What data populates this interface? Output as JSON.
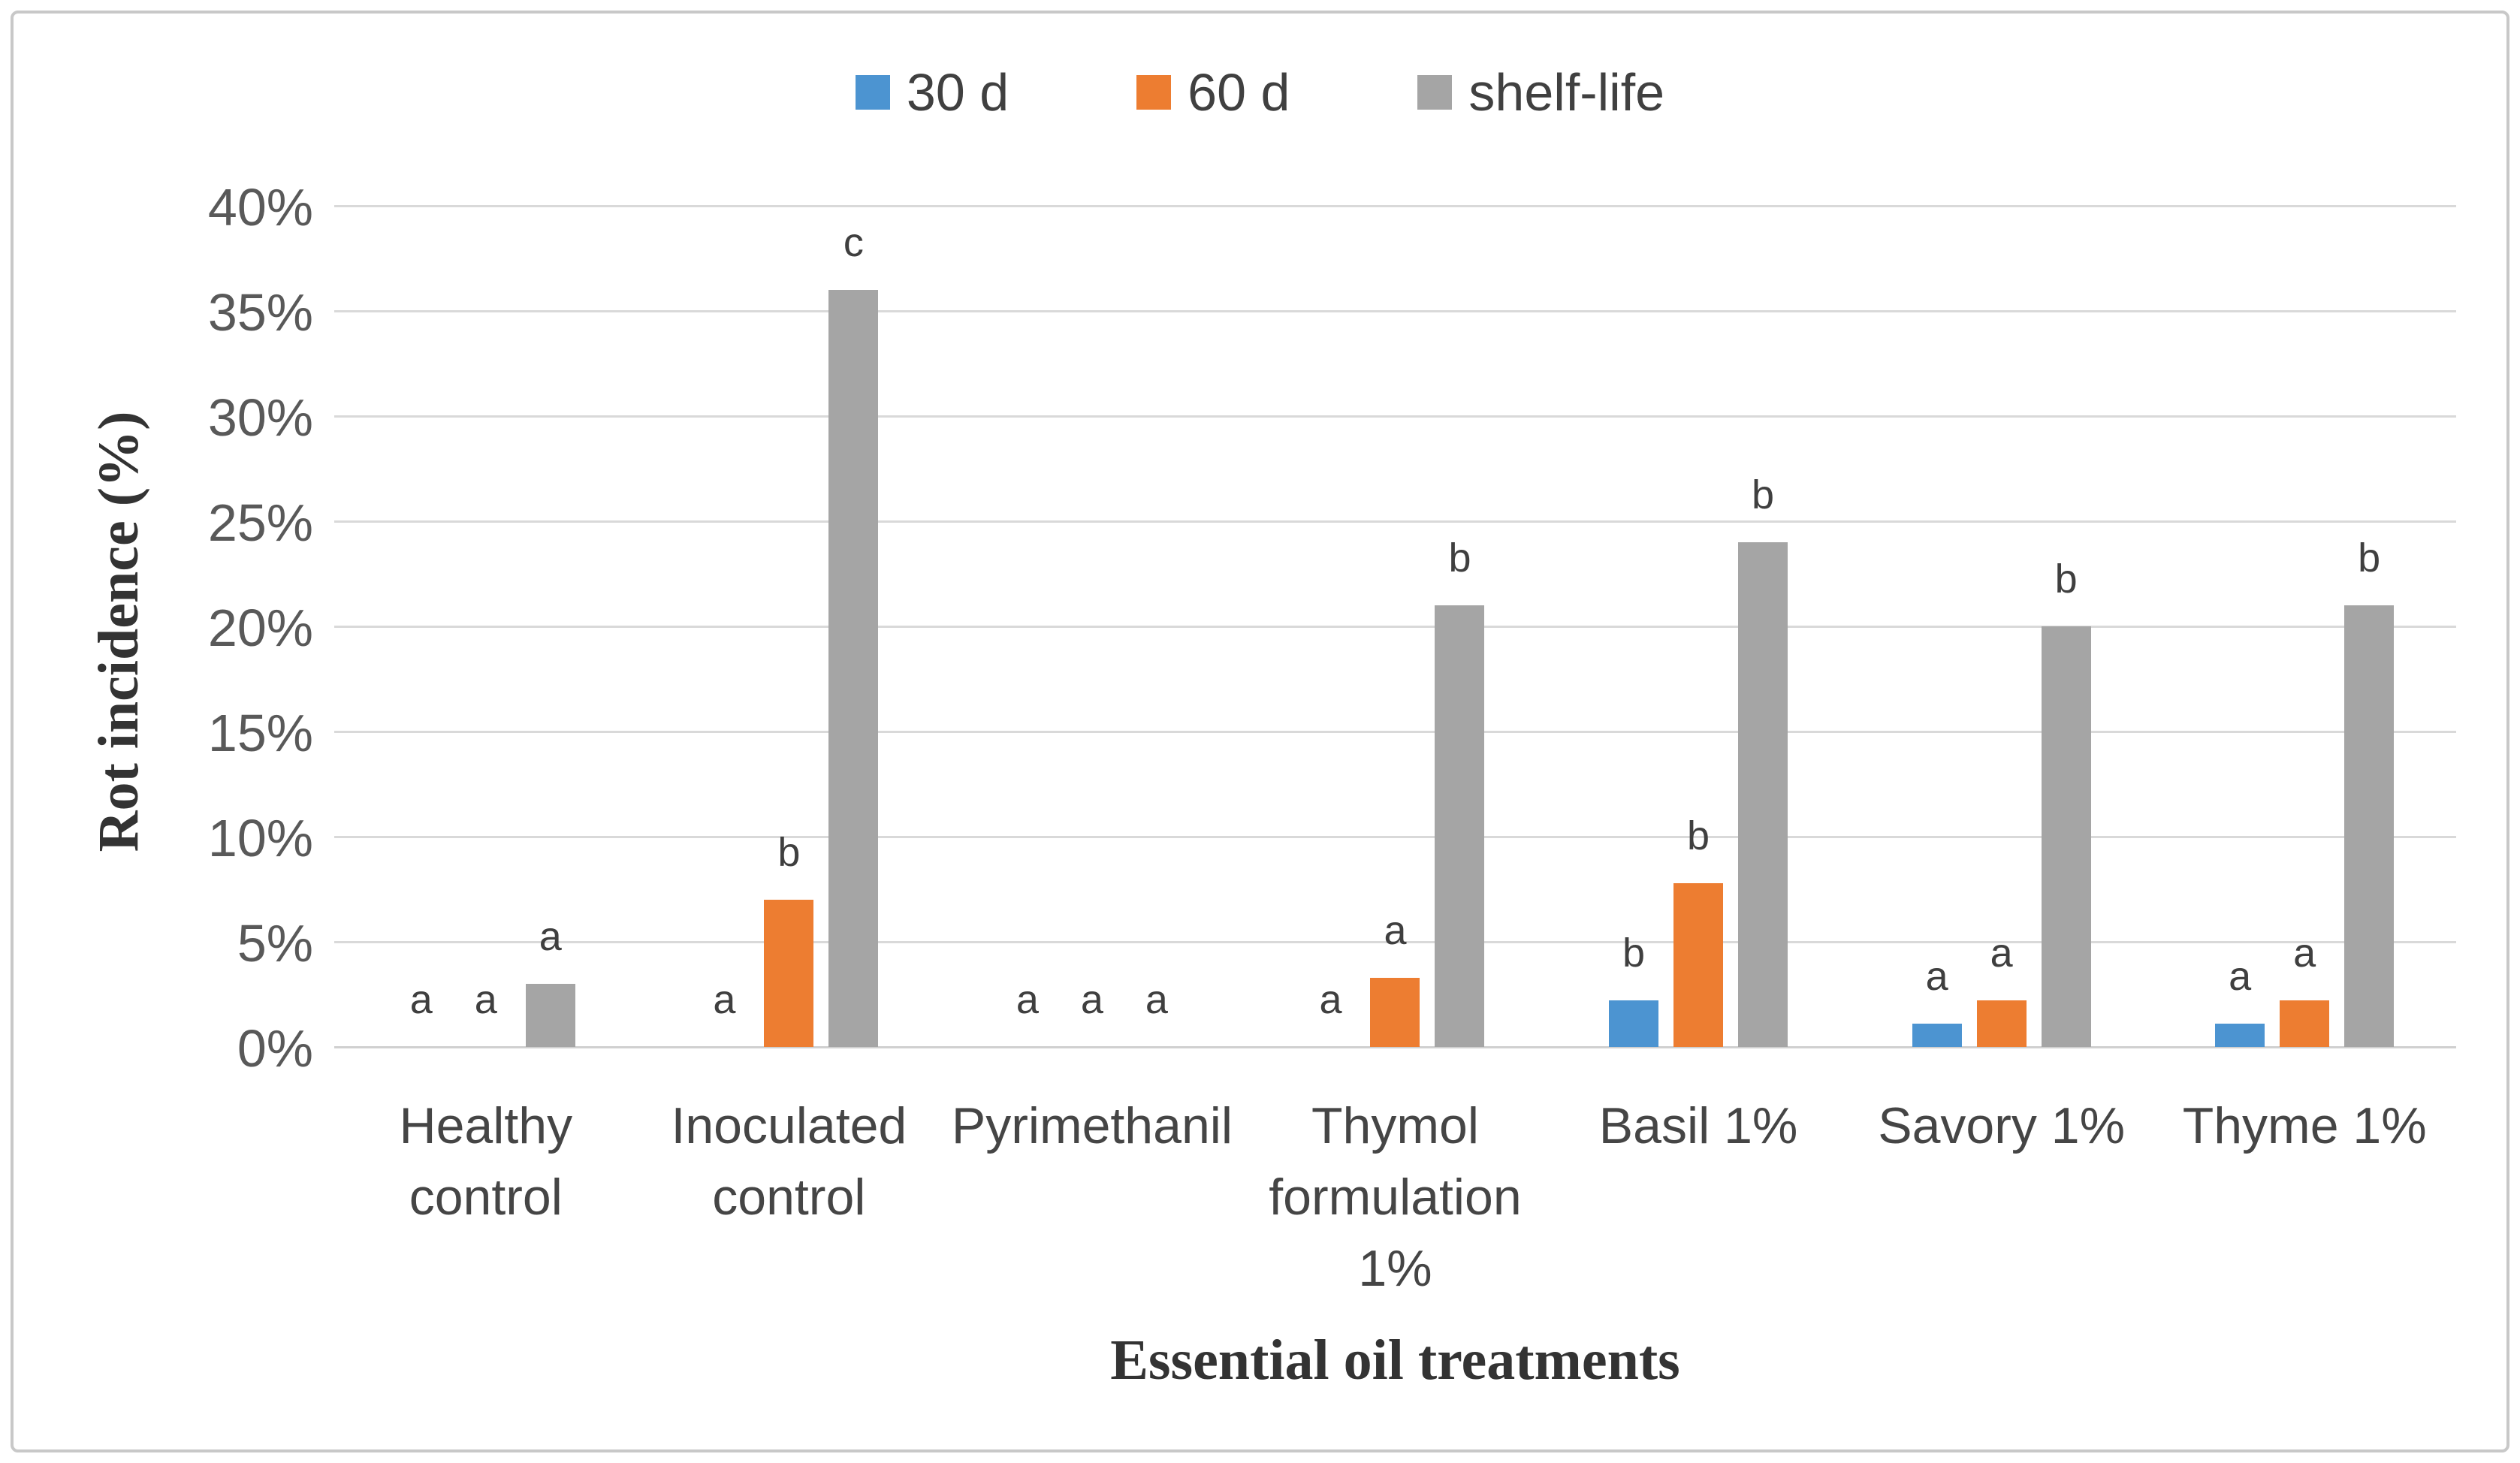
{
  "chart_data": {
    "type": "bar",
    "title": "",
    "xlabel": "Essential oil treatments",
    "ylabel": "Rot incidence (%)",
    "ylim": [
      0,
      40
    ],
    "ytick_step": 5,
    "ytick_labels": [
      "0%",
      "5%",
      "10%",
      "15%",
      "20%",
      "25%",
      "30%",
      "35%",
      "40%"
    ],
    "grid": true,
    "legend_position": "top-center",
    "categories": [
      "Healthy control",
      "Inoculated control",
      "Pyrimethanil",
      "Thymol formulation 1%",
      "Basil 1%",
      "Savory 1%",
      "Thyme 1%"
    ],
    "category_display_lines": [
      [
        "Healthy",
        "control"
      ],
      [
        "Inoculated",
        "control"
      ],
      [
        "Pyrimethanil"
      ],
      [
        "Thymol",
        "formulation",
        "1%"
      ],
      [
        "Basil 1%"
      ],
      [
        "Savory 1%"
      ],
      [
        "Thyme 1%"
      ]
    ],
    "series": [
      {
        "name": "30 d",
        "color": "#4c94d1",
        "values": [
          0,
          0,
          0,
          0,
          2.2,
          1.1,
          1.1
        ],
        "significance_letters": [
          "a",
          "a",
          "a",
          "a",
          "b",
          "a",
          "a"
        ]
      },
      {
        "name": "60 d",
        "color": "#ed7d31",
        "values": [
          0,
          7,
          0,
          3.3,
          7.8,
          2.2,
          2.2
        ],
        "significance_letters": [
          "a",
          "b",
          "a",
          "a",
          "b",
          "a",
          "a"
        ]
      },
      {
        "name": "shelf-life",
        "color": "#a5a5a5",
        "values": [
          3,
          36,
          0,
          21,
          24,
          20,
          21
        ],
        "significance_letters": [
          "a",
          "c",
          "a",
          "b",
          "b",
          "b",
          "b"
        ]
      }
    ],
    "gridline_color": "#d9d9d9"
  }
}
